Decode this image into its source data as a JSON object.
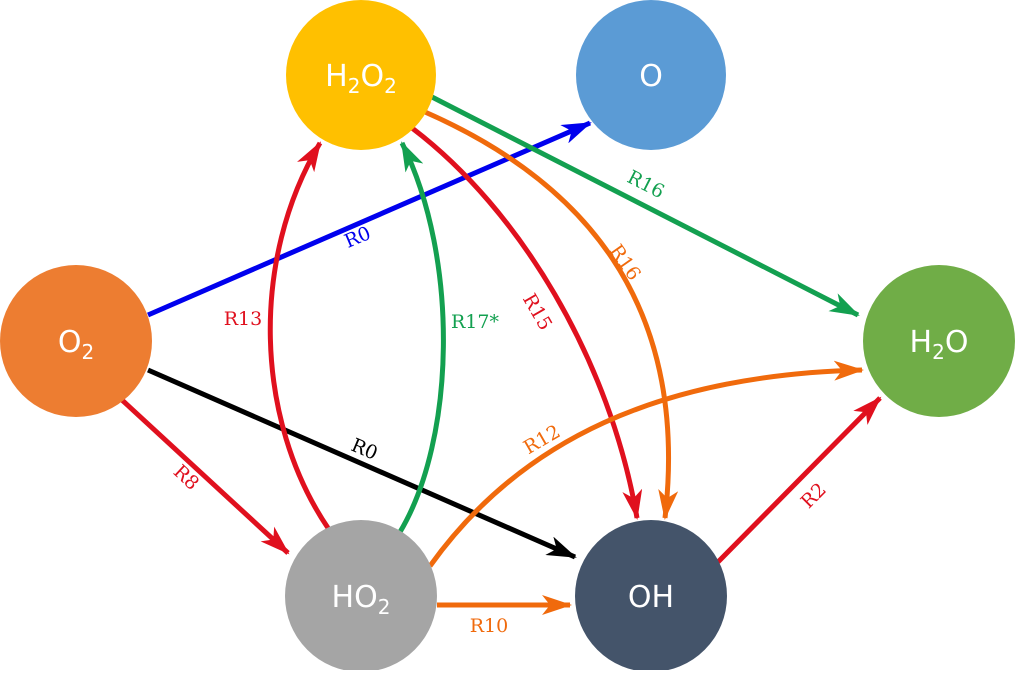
{
  "nodes": {
    "h2o2": {
      "main": "H",
      "sub1": "2",
      "main2": "O",
      "sub2": "2",
      "color": "#FFC000"
    },
    "o": {
      "main": "O",
      "color": "#5B9BD5"
    },
    "o2": {
      "main": "O",
      "sub1": "2",
      "color": "#ED7D31"
    },
    "h2o": {
      "main": "H",
      "sub1": "2",
      "main2": "O",
      "color": "#70AD47"
    },
    "ho2": {
      "main": "HO",
      "sub1": "2",
      "color": "#A5A5A5"
    },
    "oh": {
      "main": "OH",
      "color": "#44546A"
    }
  },
  "edges": {
    "o2_o": {
      "label": "R0",
      "color": "#0000EE"
    },
    "o2_oh": {
      "label": "R0",
      "color": "#000000"
    },
    "o2_ho2": {
      "label": "R8",
      "color": "#E0101E"
    },
    "ho2_h2o2_r13": {
      "label": "R13",
      "color": "#E0101E"
    },
    "ho2_h2o2_r17": {
      "label": "R17*",
      "color": "#13A050"
    },
    "h2o2_oh_r15": {
      "label": "R15",
      "color": "#E0101E"
    },
    "h2o2_oh_r16": {
      "label": "R16",
      "color": "#F06A0C"
    },
    "h2o2_h2o_r16": {
      "label": "R16",
      "color": "#13A050"
    },
    "ho2_h2o_r12": {
      "label": "R12",
      "color": "#F06A0C"
    },
    "ho2_oh_r10": {
      "label": "R10",
      "color": "#F06A0C"
    },
    "oh_h2o_r2": {
      "label": "R2",
      "color": "#E0101E"
    }
  }
}
